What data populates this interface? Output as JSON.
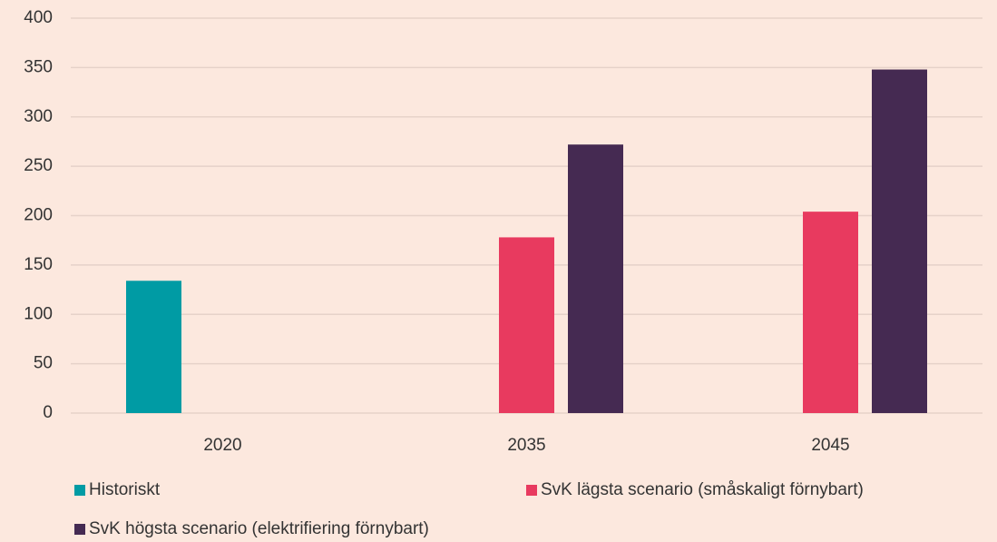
{
  "chart_data": {
    "type": "bar",
    "categories": [
      "2020",
      "2035",
      "2045"
    ],
    "series": [
      {
        "name": "Historiskt",
        "color": "#009ba4",
        "values": [
          134,
          null,
          null
        ]
      },
      {
        "name": "SvK lägsta scenario (småskaligt förnybart)",
        "color": "#e83a5f",
        "values": [
          null,
          178,
          204
        ]
      },
      {
        "name": "SvK högsta scenario (elektrifiering förnybart)",
        "color": "#452a52",
        "values": [
          null,
          272,
          348
        ]
      }
    ],
    "ylim": [
      0,
      400
    ],
    "yticks": [
      0,
      50,
      100,
      150,
      200,
      250,
      300,
      350,
      400
    ],
    "grid": true,
    "legend": "bottom"
  }
}
